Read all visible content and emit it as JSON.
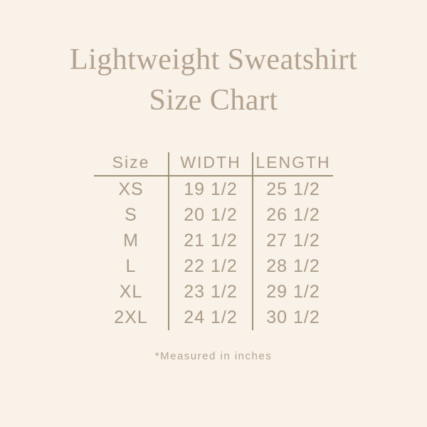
{
  "colors": {
    "background": "#f9f2e9",
    "title": "#b3a28e",
    "table_text": "#ab9c88",
    "line": "#a09279",
    "footnote": "#b3a591"
  },
  "title": {
    "line1": "Lightweight Sweatshirt",
    "line2": "Size Chart"
  },
  "table": {
    "headers": [
      "Size",
      "WIDTH",
      "LENGTH"
    ],
    "rows": [
      {
        "size": "XS",
        "width": "19 1/2",
        "length": "25 1/2"
      },
      {
        "size": "S",
        "width": "20 1/2",
        "length": "26 1/2"
      },
      {
        "size": "M",
        "width": "21 1/2",
        "length": "27 1/2"
      },
      {
        "size": "L",
        "width": "22 1/2",
        "length": "28 1/2"
      },
      {
        "size": "XL",
        "width": "23 1/2",
        "length": "29 1/2"
      },
      {
        "size": "2XL",
        "width": "24 1/2",
        "length": "30 1/2"
      }
    ]
  },
  "footnote": "*Measured in inches",
  "chart_data": {
    "type": "table",
    "title": "Lightweight Sweatshirt Size Chart",
    "columns": [
      "Size",
      "WIDTH",
      "LENGTH"
    ],
    "rows": [
      [
        "XS",
        "19 1/2",
        "25 1/2"
      ],
      [
        "S",
        "20 1/2",
        "26 1/2"
      ],
      [
        "M",
        "21 1/2",
        "27 1/2"
      ],
      [
        "L",
        "22 1/2",
        "28 1/2"
      ],
      [
        "XL",
        "23 1/2",
        "29 1/2"
      ],
      [
        "2XL",
        "24 1/2",
        "30 1/2"
      ]
    ],
    "units": "inches",
    "note": "*Measured in inches"
  }
}
